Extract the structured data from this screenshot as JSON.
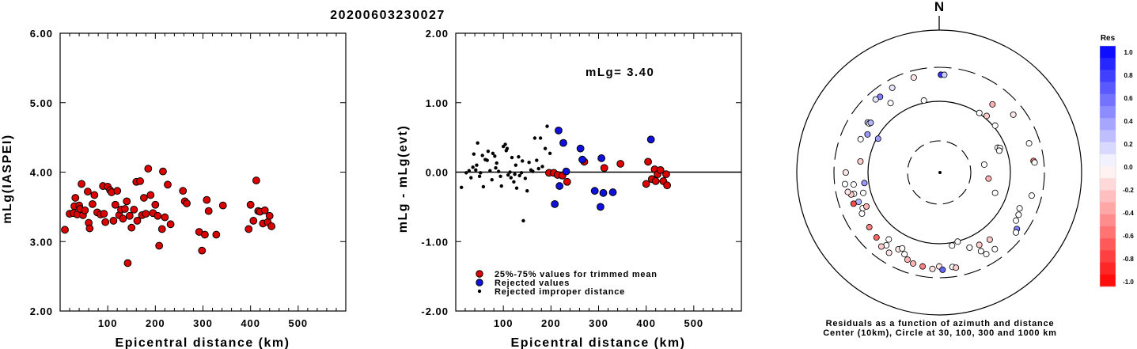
{
  "title": "20200603230027",
  "colors": {
    "trimmed": "#dd0000",
    "rejected": "#1010dd",
    "improper": "#000000"
  },
  "chart_data": [
    {
      "type": "scatter",
      "name": "left",
      "title": "",
      "xlabel": "Epicentral distance (km)",
      "ylabel": "mLg(IASPEI)",
      "xlim": [
        0,
        600
      ],
      "ylim": [
        2.0,
        6.0
      ],
      "xticks": [
        100,
        200,
        300,
        400,
        500
      ],
      "yticks": [
        "2.00",
        "3.00",
        "4.00",
        "5.00",
        "6.00"
      ],
      "points": [
        [
          10,
          3.17
        ],
        [
          20,
          3.4
        ],
        [
          28,
          3.41
        ],
        [
          30,
          3.51
        ],
        [
          32,
          3.63
        ],
        [
          36,
          3.39
        ],
        [
          40,
          3.52
        ],
        [
          42,
          3.47
        ],
        [
          45,
          3.83
        ],
        [
          48,
          3.38
        ],
        [
          52,
          3.45
        ],
        [
          58,
          3.72
        ],
        [
          60,
          3.27
        ],
        [
          62,
          3.19
        ],
        [
          68,
          3.54
        ],
        [
          72,
          3.67
        ],
        [
          78,
          3.42
        ],
        [
          85,
          3.39
        ],
        [
          90,
          3.8
        ],
        [
          92,
          3.4
        ],
        [
          95,
          3.28
        ],
        [
          100,
          3.79
        ],
        [
          105,
          3.74
        ],
        [
          108,
          3.71
        ],
        [
          112,
          3.3
        ],
        [
          116,
          3.53
        ],
        [
          120,
          3.73
        ],
        [
          124,
          3.38
        ],
        [
          128,
          3.46
        ],
        [
          132,
          3.33
        ],
        [
          136,
          3.47
        ],
        [
          140,
          3.58
        ],
        [
          142,
          2.69
        ],
        [
          146,
          3.37
        ],
        [
          150,
          3.2
        ],
        [
          155,
          3.46
        ],
        [
          160,
          3.86
        ],
        [
          162,
          3.3
        ],
        [
          168,
          3.87
        ],
        [
          172,
          3.38
        ],
        [
          176,
          3.63
        ],
        [
          180,
          3.4
        ],
        [
          185,
          4.05
        ],
        [
          190,
          3.67
        ],
        [
          195,
          3.41
        ],
        [
          200,
          3.53
        ],
        [
          205,
          3.37
        ],
        [
          208,
          2.94
        ],
        [
          214,
          3.18
        ],
        [
          216,
          4.01
        ],
        [
          220,
          3.35
        ],
        [
          226,
          3.82
        ],
        [
          232,
          3.25
        ],
        [
          258,
          3.73
        ],
        [
          262,
          3.58
        ],
        [
          266,
          3.55
        ],
        [
          292,
          3.14
        ],
        [
          298,
          2.87
        ],
        [
          304,
          3.1
        ],
        [
          308,
          3.6
        ],
        [
          312,
          3.44
        ],
        [
          328,
          3.1
        ],
        [
          342,
          3.52
        ],
        [
          396,
          3.18
        ],
        [
          400,
          3.53
        ],
        [
          406,
          3.3
        ],
        [
          412,
          3.88
        ],
        [
          416,
          3.44
        ],
        [
          420,
          3.43
        ],
        [
          426,
          3.26
        ],
        [
          430,
          3.45
        ],
        [
          436,
          3.28
        ],
        [
          440,
          3.37
        ],
        [
          444,
          3.22
        ]
      ]
    },
    {
      "type": "scatter",
      "name": "middle",
      "title": "",
      "xlabel": "Epicentral distance (km)",
      "ylabel": "mLg - mLg(evt)",
      "xlim": [
        0,
        600
      ],
      "ylim": [
        -2.0,
        2.0
      ],
      "xticks": [
        100,
        200,
        300,
        400,
        500
      ],
      "yticks": [
        "-2.00",
        "-1.00",
        "0.00",
        "1.00",
        "2.00"
      ],
      "annotation": "mLg= 3.40",
      "legend": [
        {
          "label": "25%-75% values for trimmed mean",
          "marker": "trimmed"
        },
        {
          "label": "Rejected values",
          "marker": "rejected"
        },
        {
          "label": "Rejected improper distance",
          "marker": "improper"
        }
      ],
      "series": [
        {
          "marker": "trimmed",
          "points": [
            [
              196,
              -0.01
            ],
            [
              206,
              -0.01
            ],
            [
              214,
              -0.04
            ],
            [
              224,
              -0.05
            ],
            [
              234,
              -0.14
            ],
            [
              270,
              0.15
            ],
            [
              312,
              0.06
            ],
            [
              346,
              0.12
            ],
            [
              400,
              -0.17
            ],
            [
              404,
              0.15
            ],
            [
              412,
              -0.1
            ],
            [
              418,
              0.04
            ],
            [
              420,
              -0.13
            ],
            [
              424,
              -0.03
            ],
            [
              430,
              0.03
            ],
            [
              436,
              -0.13
            ],
            [
              442,
              -0.03
            ],
            [
              444,
              -0.19
            ]
          ]
        },
        {
          "marker": "rejected",
          "points": [
            [
              208,
              -0.46
            ],
            [
              216,
              0.6
            ],
            [
              218,
              -0.2
            ],
            [
              226,
              0.42
            ],
            [
              232,
              0.01
            ],
            [
              262,
              0.34
            ],
            [
              266,
              0.18
            ],
            [
              292,
              -0.27
            ],
            [
              304,
              -0.5
            ],
            [
              306,
              0.2
            ],
            [
              310,
              -0.3
            ],
            [
              330,
              -0.29
            ],
            [
              410,
              0.47
            ]
          ]
        },
        {
          "marker": "improper",
          "points": [
            [
              12,
              -0.22
            ],
            [
              22,
              -0.01
            ],
            [
              28,
              0.02
            ],
            [
              32,
              -0.08
            ],
            [
              36,
              0.07
            ],
            [
              38,
              0.26
            ],
            [
              42,
              0.03
            ],
            [
              44,
              0.1
            ],
            [
              46,
              0.42
            ],
            [
              50,
              -0.06
            ],
            [
              52,
              -0.01
            ],
            [
              56,
              0.24
            ],
            [
              58,
              -0.21
            ],
            [
              62,
              0.18
            ],
            [
              66,
              0.17
            ],
            [
              68,
              0.3
            ],
            [
              72,
              0.02
            ],
            [
              76,
              -0.11
            ],
            [
              78,
              0.27
            ],
            [
              82,
              0.23
            ],
            [
              84,
              0.06
            ],
            [
              86,
              0.13
            ],
            [
              90,
              0.01
            ],
            [
              94,
              -0.06
            ],
            [
              96,
              -0.2
            ],
            [
              100,
              0.37
            ],
            [
              104,
              0.4
            ],
            [
              106,
              0.31
            ],
            [
              108,
              0.34
            ],
            [
              110,
              -0.04
            ],
            [
              114,
              0.0
            ],
            [
              116,
              -0.08
            ],
            [
              118,
              0.21
            ],
            [
              122,
              -0.14
            ],
            [
              124,
              -0.03
            ],
            [
              126,
              0.1
            ],
            [
              128,
              -0.23
            ],
            [
              132,
              0.22
            ],
            [
              134,
              -0.05
            ],
            [
              138,
              -0.01
            ],
            [
              140,
              0.16
            ],
            [
              142,
              -0.7
            ],
            [
              146,
              -0.09
            ],
            [
              150,
              -0.27
            ],
            [
              154,
              0.14
            ],
            [
              158,
              0.03
            ],
            [
              162,
              0.01
            ],
            [
              166,
              0.49
            ],
            [
              170,
              0.17
            ],
            [
              174,
              0.05
            ],
            [
              178,
              0.49
            ],
            [
              182,
              0.08
            ],
            [
              188,
              0.34
            ],
            [
              192,
              0.66
            ],
            [
              198,
              0.27
            ]
          ]
        }
      ]
    },
    {
      "type": "scatter",
      "name": "polar",
      "title": "N",
      "caption_line1": "Residuals as a function of azimuth and distance",
      "caption_line2": "Center (10km), Circle at 30, 100, 300 and 1000 km",
      "circles_km": [
        30,
        100,
        300,
        1000
      ],
      "colorbar": {
        "title": "Res",
        "range": [
          -1.0,
          1.0
        ],
        "labels": [
          "1.0",
          "0.8",
          "0.6",
          "0.4",
          "0.2",
          "0.0",
          "-0.2",
          "-0.4",
          "-0.6",
          "-0.8",
          "-1.0"
        ]
      },
      "points_az_km_res": [
        [
          0,
          0,
          0
        ],
        [
          1,
          236,
          0.8
        ],
        [
          3,
          236,
          0.2
        ],
        [
          345,
          240,
          -0.1
        ],
        [
          331,
          229,
          0.1
        ],
        [
          322,
          223,
          0.5
        ],
        [
          319,
          229,
          0.1
        ],
        [
          325,
          155,
          0.0
        ],
        [
          348,
          108,
          0.0
        ],
        [
          34,
          102,
          0.0
        ],
        [
          40,
          109,
          -0.2
        ],
        [
          50,
          106,
          0.0
        ],
        [
          67,
          79,
          0.0
        ],
        [
          68,
          84,
          0.0
        ],
        [
          70,
          80,
          0.0
        ],
        [
          110,
          70,
          0.0
        ],
        [
          97,
          52,
          -0.3
        ],
        [
          80,
          46,
          0.0
        ],
        [
          38,
          164,
          -0.3
        ],
        [
          52,
          209,
          -0.1
        ],
        [
          72,
          212,
          0.0
        ],
        [
          83,
          216,
          -0.5
        ],
        [
          84,
          222,
          0.0
        ],
        [
          104,
          218,
          0.0
        ],
        [
          114,
          172,
          0.0
        ],
        [
          118,
          183,
          0.0
        ],
        [
          122,
          187,
          0.0
        ],
        [
          126,
          223,
          0.5
        ],
        [
          128,
          233,
          0.0
        ],
        [
          144,
          213,
          0.0
        ],
        [
          150,
          210,
          0.0
        ],
        [
          152,
          178,
          0.0
        ],
        [
          143,
          151,
          -0.2
        ],
        [
          151,
          145,
          -0.2
        ],
        [
          158,
          137,
          0.0
        ],
        [
          165,
          101,
          0.0
        ],
        [
          170,
          110,
          0.0
        ],
        [
          180,
          208,
          -0.1
        ],
        [
          172,
          218,
          0.0
        ],
        [
          170,
          227,
          -0.2
        ],
        [
          178,
          232,
          0.6
        ],
        [
          184,
          227,
          -0.1
        ],
        [
          190,
          218,
          -0.5
        ],
        [
          196,
          213,
          -0.3
        ],
        [
          200,
          200,
          -0.3
        ],
        [
          203,
          176,
          0.0
        ],
        [
          208,
          166,
          -0.1
        ],
        [
          206,
          153,
          0.0
        ],
        [
          217,
          150,
          0.0
        ],
        [
          216,
          183,
          0.0
        ],
        [
          224,
          185,
          -0.6
        ],
        [
          218,
          208,
          -0.2
        ],
        [
          212,
          213,
          -0.1
        ],
        [
          232,
          176,
          -0.5
        ],
        [
          242,
          169,
          0.0
        ],
        [
          250,
          160,
          0.3
        ],
        [
          245,
          153,
          0.0
        ],
        [
          245,
          134,
          -0.3
        ],
        [
          255,
          127,
          0.0
        ],
        [
          262,
          115,
          0.4
        ],
        [
          278,
          131,
          -0.2
        ],
        [
          262,
          163,
          0.0
        ],
        [
          256,
          171,
          0.0
        ],
        [
          256,
          188,
          -0.2
        ],
        [
          250,
          190,
          -0.7
        ],
        [
          258,
          205,
          -0.1
        ],
        [
          263,
          215,
          0.0
        ],
        [
          270,
          205,
          -0.1
        ],
        [
          293,
          158,
          0.0
        ],
        [
          305,
          168,
          0.2
        ],
        [
          305,
          158,
          0.0
        ],
        [
          306,
          154,
          0.3
        ],
        [
          298,
          138,
          0.4
        ],
        [
          299,
          96,
          0.4
        ]
      ]
    }
  ]
}
